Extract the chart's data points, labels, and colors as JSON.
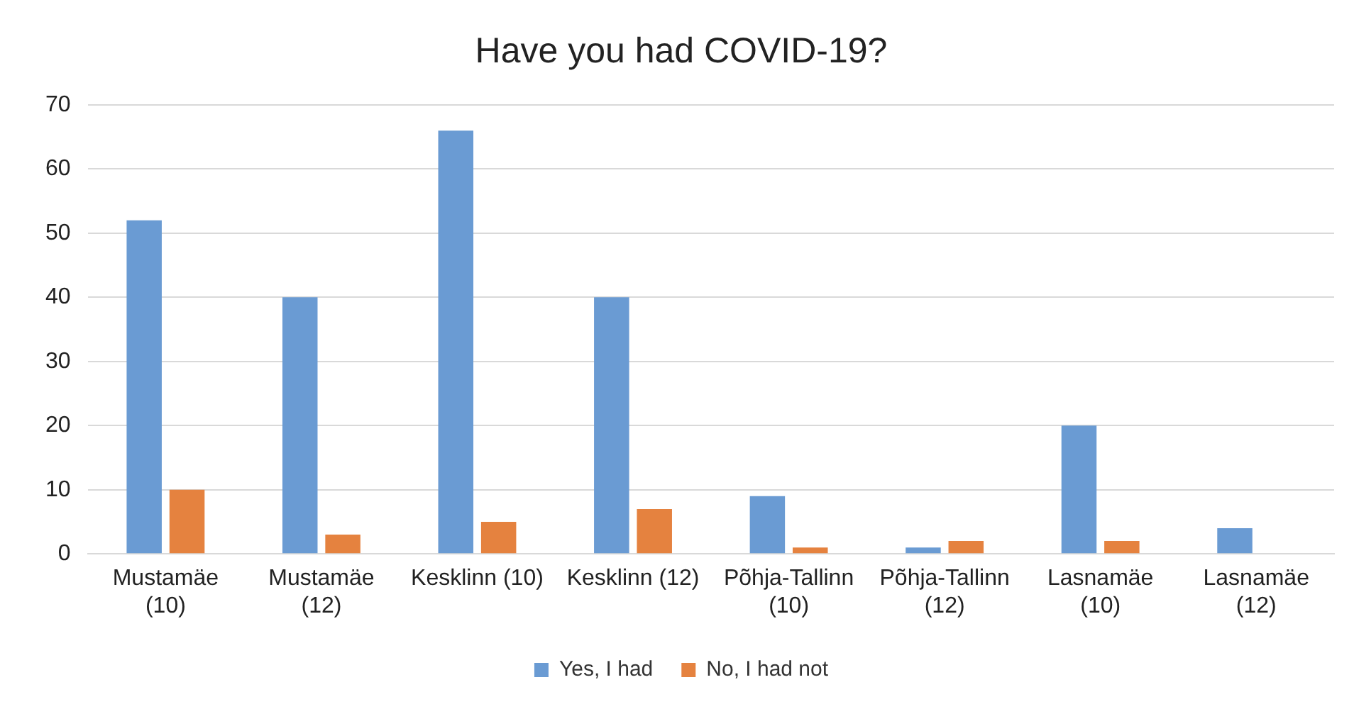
{
  "chart_data": {
    "type": "bar",
    "title": "Have you had COVID-19?",
    "categories": [
      "Mustamäe (10)",
      "Mustamäe (12)",
      "Kesklinn (10)",
      "Kesklinn (12)",
      "Põhja-Tallinn (10)",
      "Põhja-Tallinn (12)",
      "Lasnamäe (10)",
      "Lasnamäe (12)"
    ],
    "series": [
      {
        "name": "Yes, I had",
        "color": "#6a9bd3",
        "values": [
          52,
          40,
          66,
          40,
          9,
          1,
          20,
          4
        ]
      },
      {
        "name": "No, I had not",
        "color": "#e5823f",
        "values": [
          10,
          3,
          5,
          7,
          1,
          2,
          2,
          0
        ]
      }
    ],
    "ylim": [
      0,
      70
    ],
    "yticks": [
      0,
      10,
      20,
      30,
      40,
      50,
      60,
      70
    ],
    "grid": "y",
    "legend": "bottom"
  }
}
